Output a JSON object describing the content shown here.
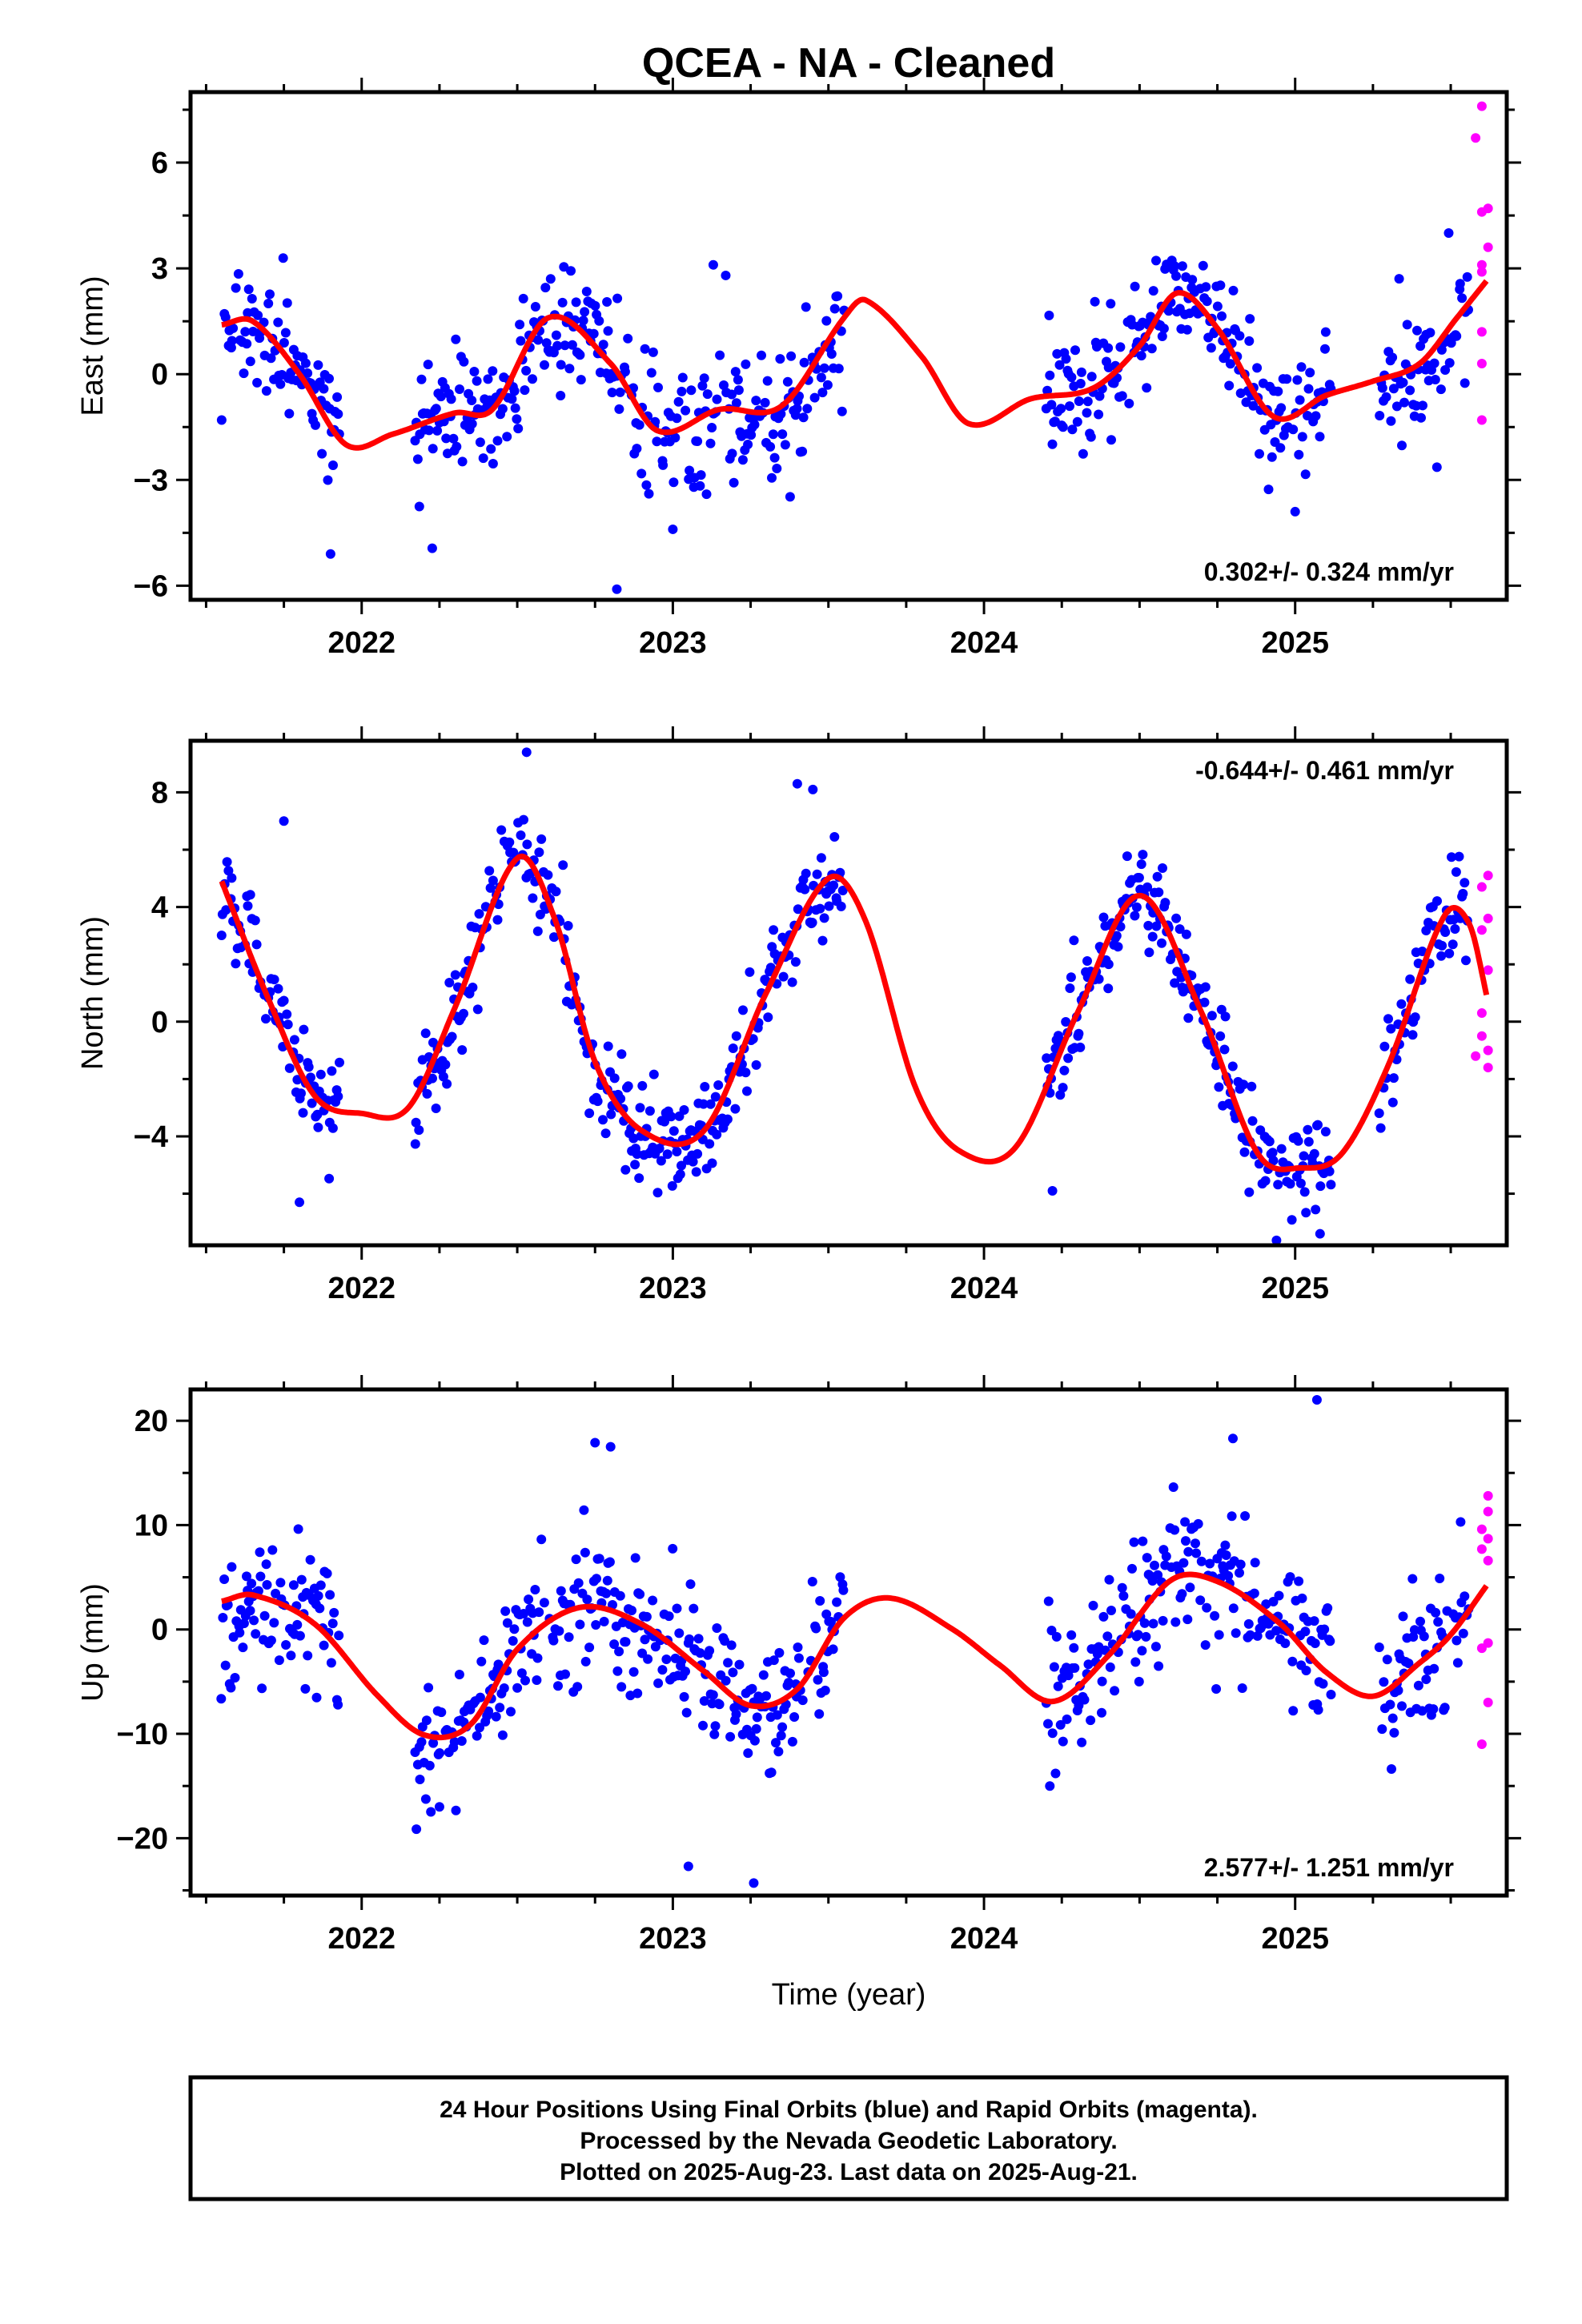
{
  "title": "QCEA  - NA - Cleaned",
  "colors": {
    "final": "#0000ff",
    "rapid": "#ff00ff",
    "model": "#ff0000",
    "axis": "#000000"
  },
  "footer": {
    "line1": "24 Hour Positions Using Final Orbits (blue) and Rapid Orbits (magenta).",
    "line2": "Processed by the Nevada Geodetic Laboratory.",
    "line3": "Plotted on 2025-Aug-23. Last data on 2025-Aug-21."
  },
  "chart_data": [
    {
      "type": "scatter",
      "ylabel": "East (mm)",
      "xlabel": "",
      "rate_text": "0.302+/- 0.324 mm/yr",
      "rate_position": "bottom-right",
      "xlim": [
        2021.45,
        2025.68
      ],
      "ylim": [
        -6.4,
        8.0
      ],
      "yticks": [
        -6,
        -3,
        0,
        3,
        6
      ],
      "ytick_labels": [
        "−6",
        "−3",
        "0",
        "3",
        "6"
      ],
      "xticks": [
        2022,
        2023,
        2024,
        2025
      ],
      "xtick_labels": [
        "2022",
        "2023",
        "2024",
        "2025"
      ],
      "data_gaps": [
        [
          2021.93,
          2022.17
        ],
        [
          2023.55,
          2024.2
        ],
        [
          2025.12,
          2025.27
        ]
      ],
      "trend": {
        "slope": 0.302,
        "ref": 2023.5
      },
      "seasonal": [
        [
          2021.55,
          1.4
        ],
        [
          2021.65,
          1.5
        ],
        [
          2021.8,
          0.0
        ],
        [
          2021.95,
          -2.0
        ],
        [
          2022.1,
          -1.7
        ],
        [
          2022.3,
          -1.1
        ],
        [
          2022.42,
          -1.0
        ],
        [
          2022.6,
          1.6
        ],
        [
          2022.8,
          0.3
        ],
        [
          2022.95,
          -1.6
        ],
        [
          2023.15,
          -1.0
        ],
        [
          2023.35,
          -0.9
        ],
        [
          2023.55,
          1.6
        ],
        [
          2023.62,
          2.1
        ],
        [
          2023.8,
          0.5
        ],
        [
          2023.95,
          -1.4
        ],
        [
          2024.15,
          -0.7
        ],
        [
          2024.35,
          -0.4
        ],
        [
          2024.5,
          0.8
        ],
        [
          2024.62,
          2.3
        ],
        [
          2024.75,
          1.3
        ],
        [
          2024.93,
          -1.2
        ],
        [
          2025.1,
          -0.6
        ],
        [
          2025.25,
          -0.2
        ],
        [
          2025.4,
          0.3
        ],
        [
          2025.52,
          1.6
        ],
        [
          2025.62,
          2.7
        ]
      ],
      "noise_sd": 0.9,
      "outliers": [
        [
          2022.82,
          -6.1
        ],
        [
          2023.13,
          3.1
        ],
        [
          2023.17,
          2.8
        ],
        [
          2021.9,
          -5.1
        ],
        [
          2025.0,
          -3.9
        ],
        [
          2021.55,
          -1.3
        ],
        [
          2023.0,
          -4.4
        ]
      ],
      "rapid_points": [
        [
          2025.6,
          7.6
        ],
        [
          2025.58,
          6.7
        ],
        [
          2025.6,
          4.6
        ],
        [
          2025.62,
          4.7
        ],
        [
          2025.6,
          3.1
        ],
        [
          2025.62,
          3.6
        ],
        [
          2025.6,
          2.9
        ],
        [
          2025.6,
          1.2
        ],
        [
          2025.6,
          0.3
        ],
        [
          2025.6,
          -1.3
        ]
      ]
    },
    {
      "type": "scatter",
      "ylabel": "North (mm)",
      "xlabel": "",
      "rate_text": "-0.644+/- 0.461 mm/yr",
      "rate_position": "top-right",
      "xlim": [
        2021.45,
        2025.68
      ],
      "ylim": [
        -7.8,
        9.8
      ],
      "yticks": [
        -4,
        0,
        4,
        8
      ],
      "ytick_labels": [
        "−4",
        "0",
        "4",
        "8"
      ],
      "xticks": [
        2022,
        2023,
        2024,
        2025
      ],
      "xtick_labels": [
        "2022",
        "2023",
        "2024",
        "2025"
      ],
      "data_gaps": [
        [
          2021.93,
          2022.17
        ],
        [
          2023.55,
          2024.2
        ],
        [
          2025.12,
          2025.27
        ]
      ],
      "trend": {
        "slope": -0.644,
        "ref": 2023.5
      },
      "seasonal": [
        [
          2021.55,
          4.9
        ],
        [
          2021.7,
          0.8
        ],
        [
          2021.85,
          -2.6
        ],
        [
          2022.0,
          -3.2
        ],
        [
          2022.15,
          -3.0
        ],
        [
          2022.3,
          0.5
        ],
        [
          2022.5,
          5.7
        ],
        [
          2022.62,
          3.6
        ],
        [
          2022.75,
          -1.4
        ],
        [
          2022.9,
          -3.8
        ],
        [
          2023.1,
          -3.8
        ],
        [
          2023.3,
          1.0
        ],
        [
          2023.5,
          5.0
        ],
        [
          2023.62,
          3.5
        ],
        [
          2023.78,
          -2.3
        ],
        [
          2023.92,
          -4.5
        ],
        [
          2024.1,
          -4.4
        ],
        [
          2024.3,
          0.3
        ],
        [
          2024.5,
          4.4
        ],
        [
          2024.7,
          0.3
        ],
        [
          2024.88,
          -4.6
        ],
        [
          2025.02,
          -5.1
        ],
        [
          2025.15,
          -4.6
        ],
        [
          2025.3,
          -1.5
        ],
        [
          2025.48,
          3.7
        ],
        [
          2025.56,
          3.4
        ],
        [
          2025.62,
          0.7
        ]
      ],
      "noise_sd": 0.9,
      "outliers": [
        [
          2022.53,
          9.4
        ],
        [
          2021.75,
          7.0
        ],
        [
          2023.4,
          8.3
        ],
        [
          2023.45,
          8.1
        ],
        [
          2025.08,
          -7.4
        ],
        [
          2021.8,
          -6.3
        ],
        [
          2024.22,
          -5.9
        ]
      ],
      "rapid_points": [
        [
          2025.62,
          5.1
        ],
        [
          2025.6,
          4.7
        ],
        [
          2025.62,
          3.6
        ],
        [
          2025.6,
          3.2
        ],
        [
          2025.62,
          1.8
        ],
        [
          2025.6,
          0.3
        ],
        [
          2025.6,
          -0.5
        ],
        [
          2025.62,
          -1.0
        ],
        [
          2025.58,
          -1.2
        ],
        [
          2025.62,
          -1.6
        ]
      ]
    },
    {
      "type": "scatter",
      "ylabel": "Up (mm)",
      "xlabel": "Time (year)",
      "rate_text": "2.577+/- 1.251 mm/yr",
      "rate_position": "bottom-right",
      "xlim": [
        2021.45,
        2025.68
      ],
      "ylim": [
        -25.5,
        23
      ],
      "yticks": [
        -20,
        -10,
        0,
        10,
        20
      ],
      "ytick_labels": [
        "−20",
        "−10",
        "0",
        "10",
        "20"
      ],
      "xticks": [
        2022,
        2023,
        2024,
        2025
      ],
      "xtick_labels": [
        "2022",
        "2023",
        "2024",
        "2025"
      ],
      "data_gaps": [
        [
          2021.93,
          2022.17
        ],
        [
          2023.55,
          2024.2
        ],
        [
          2025.12,
          2025.27
        ]
      ],
      "trend": {
        "slope": 2.577,
        "ref": 2023.5
      },
      "seasonal": [
        [
          2021.55,
          2.7
        ],
        [
          2021.65,
          3.3
        ],
        [
          2021.85,
          0.5
        ],
        [
          2022.05,
          -6.3
        ],
        [
          2022.2,
          -10.1
        ],
        [
          2022.35,
          -9.1
        ],
        [
          2022.5,
          -1.9
        ],
        [
          2022.7,
          2.1
        ],
        [
          2022.9,
          0.5
        ],
        [
          2023.1,
          -4.0
        ],
        [
          2023.25,
          -7.3
        ],
        [
          2023.4,
          -5.7
        ],
        [
          2023.55,
          1.1
        ],
        [
          2023.7,
          3.0
        ],
        [
          2023.9,
          0.0
        ],
        [
          2024.05,
          -3.4
        ],
        [
          2024.22,
          -6.9
        ],
        [
          2024.4,
          -2.5
        ],
        [
          2024.6,
          4.7
        ],
        [
          2024.75,
          4.6
        ],
        [
          2024.95,
          0.6
        ],
        [
          2025.1,
          -4.1
        ],
        [
          2025.25,
          -6.4
        ],
        [
          2025.4,
          -3.2
        ],
        [
          2025.5,
          -0.5
        ],
        [
          2025.62,
          4.4
        ]
      ],
      "noise_sd": 3.5,
      "outliers": [
        [
          2025.07,
          22.0
        ],
        [
          2024.8,
          18.3
        ],
        [
          2022.75,
          17.9
        ],
        [
          2022.8,
          17.5
        ],
        [
          2023.05,
          -22.7
        ],
        [
          2023.26,
          -24.3
        ],
        [
          2024.23,
          -13.8
        ],
        [
          2022.25,
          -17.0
        ]
      ],
      "rapid_points": [
        [
          2025.62,
          12.8
        ],
        [
          2025.62,
          11.3
        ],
        [
          2025.6,
          9.6
        ],
        [
          2025.62,
          8.7
        ],
        [
          2025.6,
          7.7
        ],
        [
          2025.62,
          6.6
        ],
        [
          2025.62,
          -1.3
        ],
        [
          2025.6,
          -1.8
        ],
        [
          2025.62,
          -7.0
        ],
        [
          2025.6,
          -11.0
        ]
      ]
    }
  ]
}
